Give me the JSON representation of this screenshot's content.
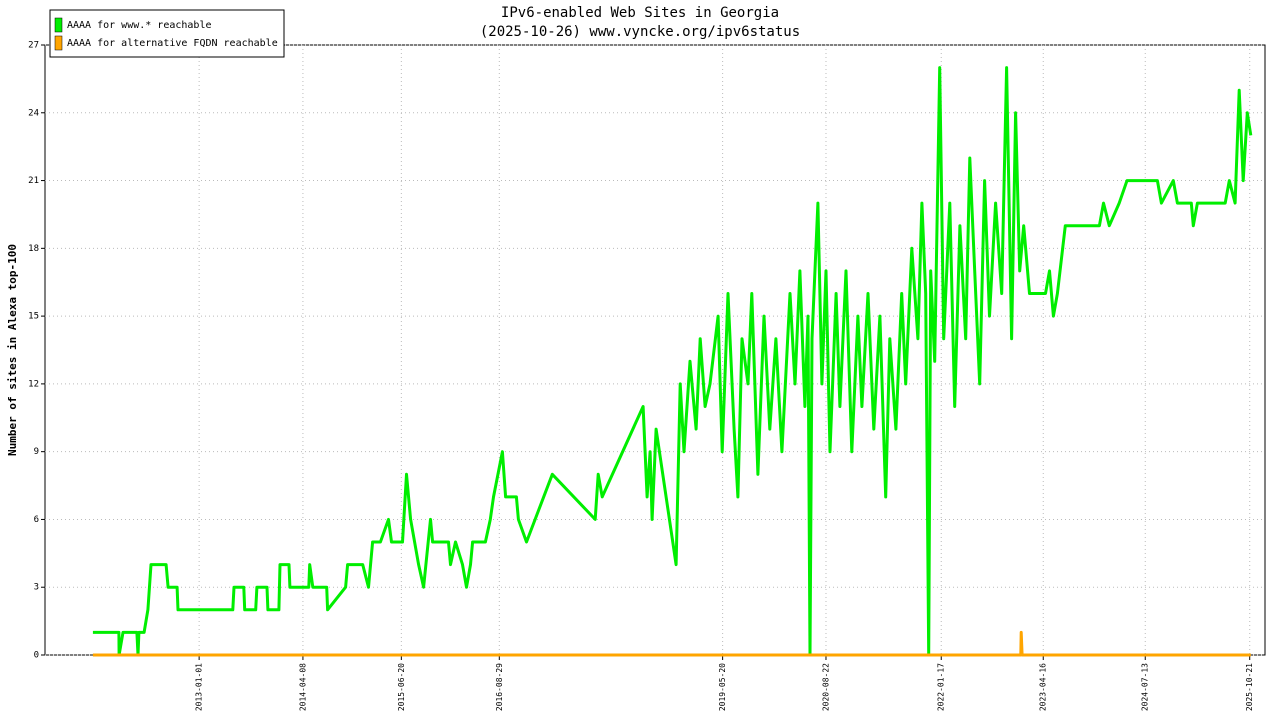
{
  "chart_data": {
    "type": "line",
    "title": "IPv6-enabled Web Sites in Georgia",
    "subtitle": "(2025-10-26) www.vyncke.org/ipv6status",
    "y_label": "Number of sites in Alexa top-100",
    "xlim": [
      "2011-02-15",
      "2025-12-28"
    ],
    "xticks": [
      "2013-01-01",
      "2014-04-08",
      "2015-06-20",
      "2016-08-29",
      "2019-05-20",
      "2020-08-22",
      "2022-01-17",
      "2023-04-16",
      "2024-07-13",
      "2025-10-21"
    ],
    "ylim": [
      0,
      27
    ],
    "yticks": [
      0,
      3,
      6,
      9,
      12,
      15,
      18,
      21,
      24,
      27
    ],
    "grid": true,
    "legend": "upper left",
    "series": [
      {
        "name": "AAAA for www.* reachable",
        "color": "#00ee00",
        "x": [
          "2011-09-16",
          "2012-01-10",
          "2012-01-11",
          "2012-01-28",
          "2012-03-30",
          "2012-04-04",
          "2012-04-08",
          "2012-05-01",
          "2012-05-18",
          "2012-06-01",
          "2012-08-07",
          "2012-08-16",
          "2012-09-25",
          "2012-09-29",
          "2013-05-31",
          "2013-06-05",
          "2013-07-19",
          "2013-07-23",
          "2013-09-10",
          "2013-09-15",
          "2013-10-30",
          "2013-11-03",
          "2013-12-22",
          "2013-12-27",
          "2014-02-05",
          "2014-02-09",
          "2014-05-04",
          "2014-05-08",
          "2014-05-22",
          "2014-07-23",
          "2014-07-27",
          "2014-10-15",
          "2014-10-24",
          "2014-12-30",
          "2015-01-25",
          "2015-02-12",
          "2015-03-19",
          "2015-04-24",
          "2015-05-07",
          "2015-06-25",
          "2015-07-13",
          "2015-07-31",
          "2015-09-05",
          "2015-09-27",
          "2015-10-28",
          "2015-11-06",
          "2016-01-16",
          "2016-01-25",
          "2016-02-16",
          "2016-03-18",
          "2016-04-05",
          "2016-04-23",
          "2016-05-02",
          "2016-06-28",
          "2016-07-20",
          "2016-08-03",
          "2016-09-12",
          "2016-09-26",
          "2016-11-13",
          "2016-11-22",
          "2016-12-28",
          "2017-04-22",
          "2017-10-30",
          "2017-11-12",
          "2017-11-30",
          "2018-05-31",
          "2018-06-18",
          "2018-07-01",
          "2018-07-10",
          "2018-07-28",
          "2018-10-25",
          "2018-11-12",
          "2018-11-29",
          "2018-12-26",
          "2019-01-22",
          "2019-02-09",
          "2019-03-03",
          "2019-03-25",
          "2019-04-30",
          "2019-05-18",
          "2019-06-13",
          "2019-07-10",
          "2019-07-27",
          "2019-08-14",
          "2019-09-10",
          "2019-09-27",
          "2019-10-24",
          "2019-11-20",
          "2019-12-16",
          "2020-01-12",
          "2020-02-08",
          "2020-03-15",
          "2020-04-06",
          "2020-04-28",
          "2020-05-20",
          "2020-06-03",
          "2020-06-12",
          "2020-06-21",
          "2020-07-17",
          "2020-08-04",
          "2020-08-22",
          "2020-09-09",
          "2020-10-06",
          "2020-10-23",
          "2020-11-19",
          "2020-12-15",
          "2021-01-11",
          "2021-01-29",
          "2021-02-25",
          "2021-03-23",
          "2021-04-19",
          "2021-05-15",
          "2021-06-02",
          "2021-06-29",
          "2021-07-25",
          "2021-08-12",
          "2021-09-08",
          "2021-10-05",
          "2021-10-23",
          "2021-11-09",
          "2021-11-22",
          "2021-12-01",
          "2021-12-19",
          "2022-01-10",
          "2022-01-28",
          "2022-02-24",
          "2022-03-18",
          "2022-04-10",
          "2022-05-06",
          "2022-05-24",
          "2022-06-15",
          "2022-07-07",
          "2022-07-29",
          "2022-08-20",
          "2022-09-16",
          "2022-10-13",
          "2022-11-04",
          "2022-11-26",
          "2022-12-14",
          "2023-01-01",
          "2023-01-19",
          "2023-02-14",
          "2023-04-26",
          "2023-05-14",
          "2023-05-31",
          "2023-06-18",
          "2023-07-23",
          "2023-12-22",
          "2024-01-09",
          "2024-02-04",
          "2024-03-19",
          "2024-04-23",
          "2024-09-05",
          "2024-09-23",
          "2024-11-15",
          "2024-12-03",
          "2025-02-03",
          "2025-02-12",
          "2025-03-02",
          "2025-07-04",
          "2025-07-22",
          "2025-08-17",
          "2025-09-04",
          "2025-09-22",
          "2025-10-10",
          "2025-10-26"
        ],
        "values": [
          1,
          1,
          0,
          1,
          1,
          0,
          1,
          1,
          2,
          4,
          4,
          3,
          3,
          2,
          2,
          3,
          3,
          2,
          2,
          3,
          3,
          2,
          2,
          4,
          4,
          3,
          3,
          4,
          3,
          3,
          2,
          3,
          4,
          4,
          3,
          5,
          5,
          6,
          5,
          5,
          8,
          6,
          4,
          3,
          6,
          5,
          5,
          4,
          5,
          4,
          3,
          4,
          5,
          5,
          6,
          7,
          9,
          7,
          7,
          6,
          5,
          8,
          6,
          8,
          7,
          11,
          7,
          9,
          6,
          10,
          4,
          12,
          9,
          13,
          10,
          14,
          11,
          12,
          15,
          9,
          16,
          10,
          7,
          14,
          12,
          16,
          8,
          15,
          10,
          14,
          9,
          16,
          12,
          17,
          11,
          15,
          0,
          14,
          20,
          12,
          17,
          9,
          16,
          11,
          17,
          9,
          15,
          11,
          16,
          10,
          15,
          7,
          14,
          10,
          16,
          12,
          18,
          14,
          20,
          16,
          0,
          17,
          13,
          26,
          14,
          20,
          11,
          19,
          14,
          22,
          17,
          12,
          21,
          15,
          20,
          16,
          26,
          14,
          24,
          17,
          19,
          16,
          16,
          17,
          15,
          16,
          19,
          19,
          20,
          19,
          20,
          21,
          21,
          20,
          21,
          20,
          20,
          19,
          20,
          20,
          21,
          20,
          25,
          21,
          24,
          23
        ]
      },
      {
        "name": "AAAA for alternative FQDN reachable",
        "color": "#ffa500",
        "x": [
          "2011-09-16",
          "2023-01-06",
          "2023-01-08",
          "2023-01-12",
          "2025-10-26"
        ],
        "values": [
          0,
          0,
          1,
          0,
          0
        ]
      }
    ]
  }
}
